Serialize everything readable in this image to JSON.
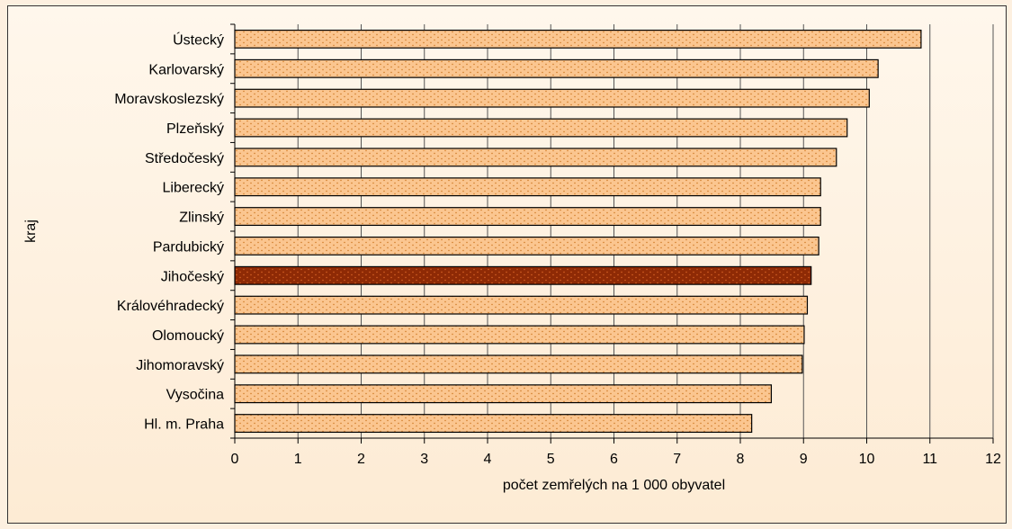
{
  "chart_data": {
    "type": "bar",
    "orientation": "horizontal",
    "categories": [
      "Ústecký",
      "Karlovarský",
      "Moravskoslezský",
      "Plzeňský",
      "Středočeský",
      "Liberecký",
      "Zlinský",
      "Pardubický",
      "Jihočeský",
      "Královéhradecký",
      "Olomoucký",
      "Jihomoravský",
      "Vysočina",
      "Hl. m. Praha"
    ],
    "values": [
      10.86,
      10.18,
      10.04,
      9.69,
      9.52,
      9.27,
      9.27,
      9.24,
      9.12,
      9.06,
      9.01,
      8.98,
      8.49,
      8.18
    ],
    "highlight_category": "Jihočeský",
    "xlabel": "počet zemřelých na 1 000 obyvatel",
    "ylabel": "kraj",
    "xlim": [
      0,
      12
    ],
    "xticks": [
      "0",
      "1",
      "2",
      "3",
      "4",
      "5",
      "6",
      "7",
      "8",
      "9",
      "10",
      "11",
      "12"
    ],
    "grid": "vertical",
    "colors": {
      "bar": "#fbc690",
      "bar_dots": "#c9731c",
      "highlight": "#8e2a05",
      "highlight_dots": "#e06a2a",
      "bar_stroke": "#000000",
      "grid": "#555555",
      "background": "#fdf0e0"
    }
  }
}
